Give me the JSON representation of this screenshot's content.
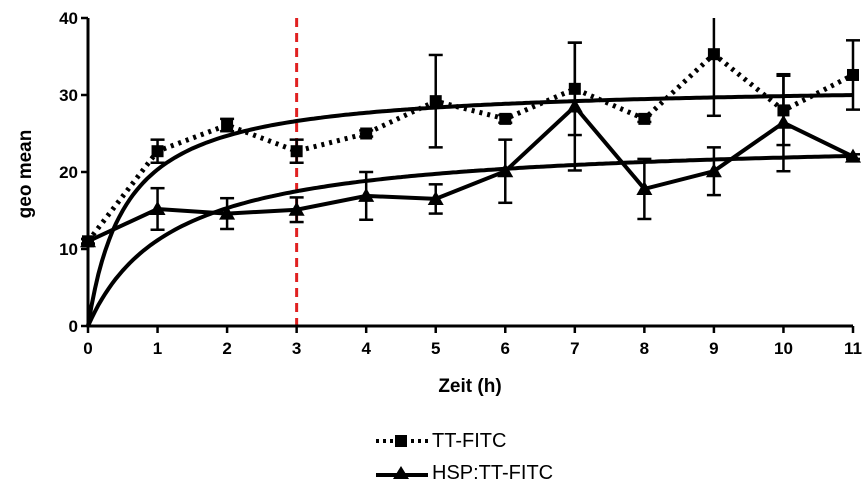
{
  "chart_data": {
    "type": "line",
    "xlabel": "Zeit (h)",
    "ylabel": "geo mean",
    "xlim": [
      0,
      11
    ],
    "ylim": [
      0,
      40
    ],
    "x_ticks": [
      "0",
      "1",
      "2",
      "3",
      "4",
      "5",
      "6",
      "7",
      "8",
      "9",
      "10",
      "11"
    ],
    "y_ticks": [
      "0",
      "10",
      "20",
      "30",
      "40"
    ],
    "grid": false,
    "legend_position": "bottom-center",
    "reference_line": {
      "x": 3,
      "color": "#e02020",
      "style": "dashed"
    },
    "series": [
      {
        "name": "TT-FITC",
        "marker": "square",
        "line_style": "dotted",
        "color": "#000000",
        "x": [
          0,
          1,
          2,
          3,
          4,
          5,
          6,
          7,
          8,
          9,
          10,
          11
        ],
        "values": [
          11,
          22.7,
          26.1,
          22.7,
          25,
          29.2,
          26.9,
          30.8,
          26.9,
          35.3,
          28,
          32.6
        ],
        "error": [
          0.3,
          1.5,
          0.8,
          1.5,
          0.4,
          6,
          0.5,
          6,
          0.4,
          8,
          4.5,
          4.5
        ],
        "fit": {
          "ymax": 31.5,
          "k": 0.55
        }
      },
      {
        "name": "HSP:TT-FITC",
        "marker": "triangle",
        "line_style": "solid",
        "color": "#000000",
        "x": [
          0,
          1,
          2,
          3,
          4,
          5,
          6,
          7,
          8,
          9,
          10,
          11
        ],
        "values": [
          11,
          15.2,
          14.6,
          15.1,
          16.9,
          16.5,
          20.1,
          28.5,
          17.8,
          20.1,
          26.4,
          22
        ],
        "error": [
          0.3,
          2.7,
          2,
          1.6,
          3.1,
          1.9,
          4.1,
          8.3,
          3.9,
          3.1,
          6.3,
          0.3
        ],
        "fit": {
          "ymax": 24.5,
          "k": 1.2
        }
      }
    ]
  }
}
